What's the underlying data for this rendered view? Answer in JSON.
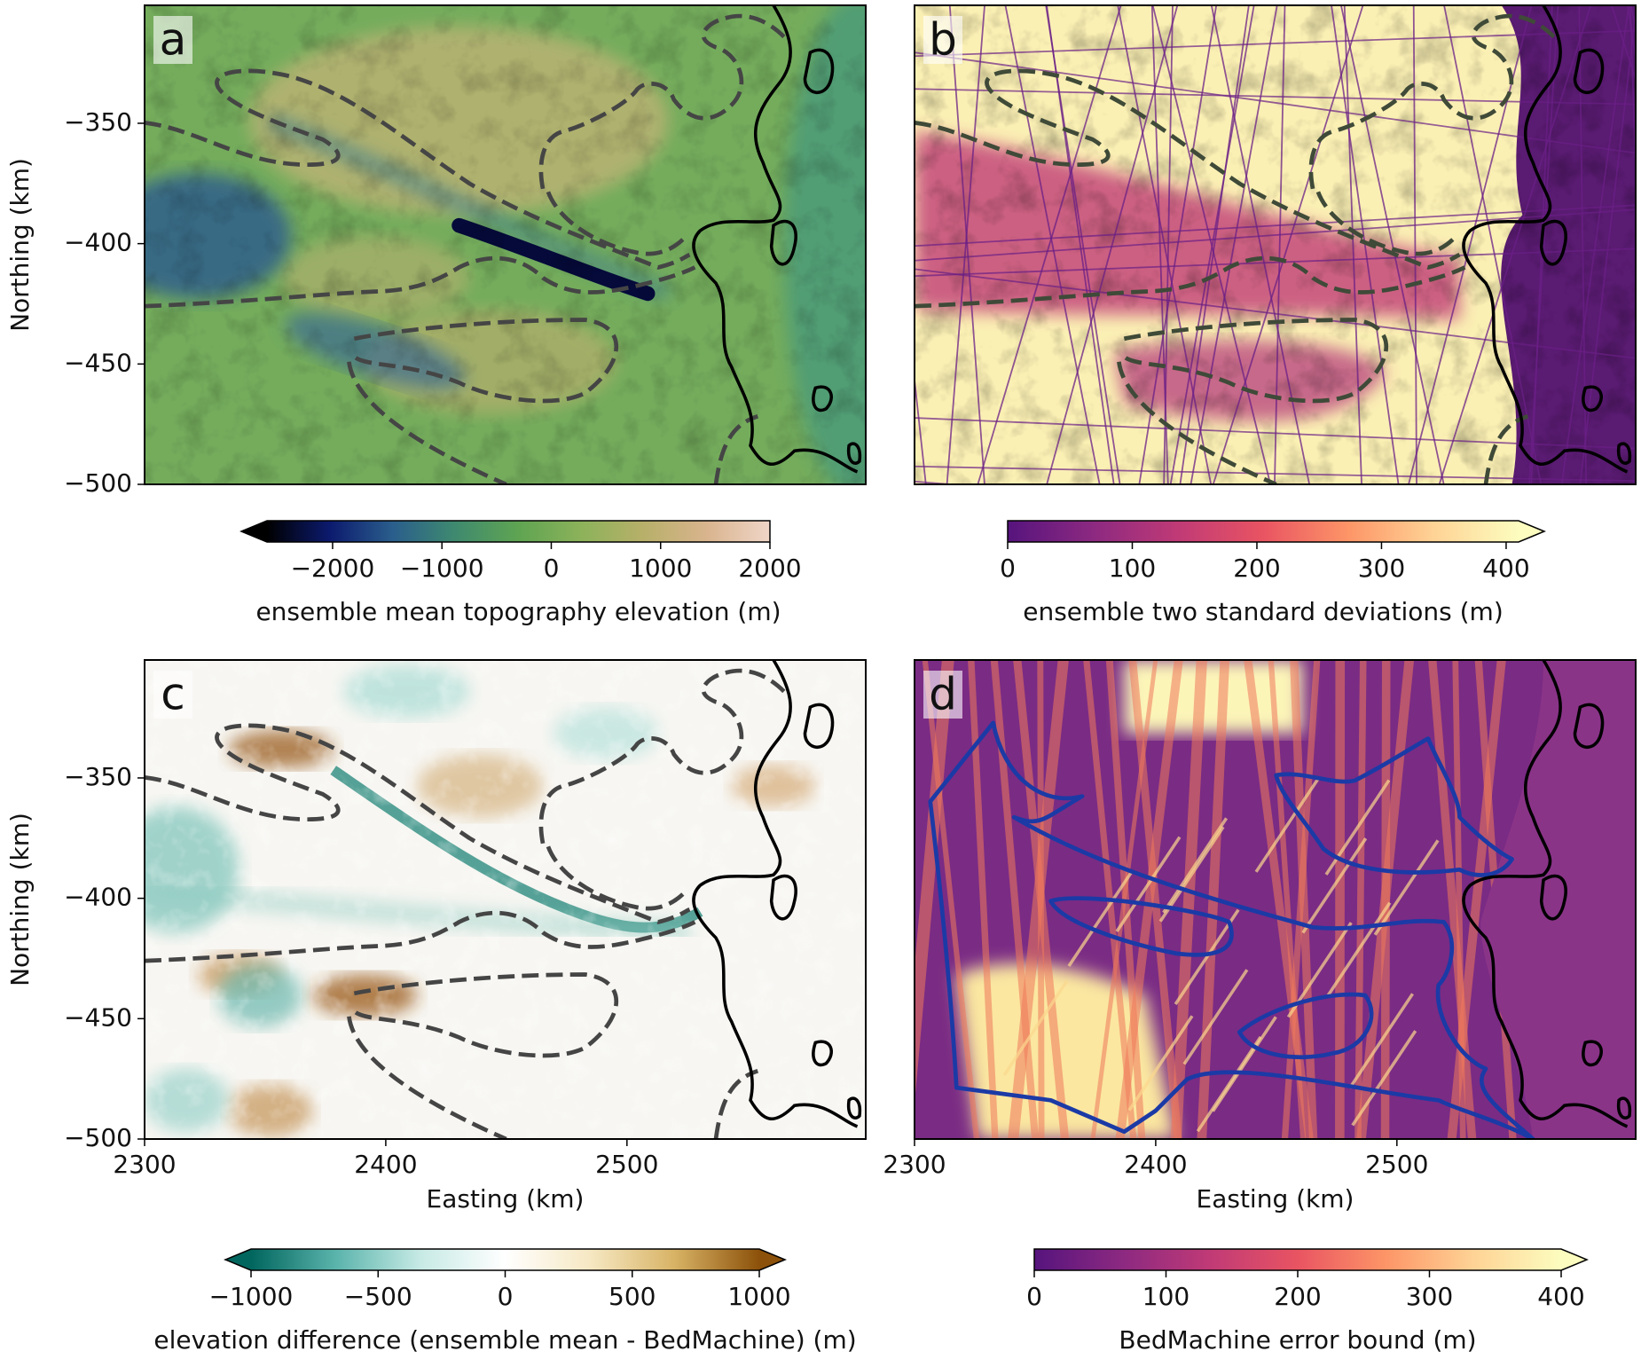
{
  "chart_data": [
    {
      "type": "heatmap",
      "panel_label": "a",
      "ylim": [
        -500,
        -301
      ],
      "yticks": [
        {
          "value": -350,
          "label": "−350"
        },
        {
          "value": -400,
          "label": "−400"
        },
        {
          "value": -450,
          "label": "−450"
        },
        {
          "value": -500,
          "label": "−500"
        }
      ],
      "ylabel": "Northing (km)",
      "outline_color": "#454545",
      "outline_style": "dashed",
      "colorbar": {
        "label": "ensemble mean topography elevation (m)",
        "lim": [
          -2600,
          2000
        ],
        "ticks": [
          {
            "value": -2000,
            "label": "−2000"
          },
          {
            "value": -1000,
            "label": "−1000"
          },
          0,
          1000,
          2000
        ],
        "extend": "min",
        "colors": [
          "#000000",
          "#0c1a6e",
          "#2a5e8c",
          "#3f8a6f",
          "#5fa452",
          "#8cb25a",
          "#b8b06a",
          "#d9b48e",
          "#f0d6c8"
        ]
      }
    },
    {
      "type": "heatmap",
      "panel_label": "b",
      "outline_color": "#3f4a38",
      "outline_style": "dashed",
      "colorbar": {
        "label": "ensemble two standard deviations (m)",
        "lim": [
          0,
          410
        ],
        "ticks": [
          0,
          100,
          200,
          300,
          400
        ],
        "extend": "max",
        "colors": [
          "#56147d",
          "#8c2981",
          "#c03a76",
          "#e95462",
          "#fd9567",
          "#fed395",
          "#fcfdbf"
        ]
      }
    },
    {
      "type": "heatmap",
      "panel_label": "c",
      "xlim": [
        2300,
        2599
      ],
      "ylim": [
        -500,
        -301
      ],
      "xticks": [
        2300,
        2400,
        2500
      ],
      "yticks": [
        {
          "value": -350,
          "label": "−350"
        },
        {
          "value": -400,
          "label": "−400"
        },
        {
          "value": -450,
          "label": "−450"
        },
        {
          "value": -500,
          "label": "−500"
        }
      ],
      "xlabel": "Easting (km)",
      "ylabel": "Northing (km)",
      "outline_color": "#454545",
      "outline_style": "dashed",
      "colorbar": {
        "label": "elevation difference (ensemble mean - BedMachine) (m)",
        "lim": [
          -1000,
          1000
        ],
        "ticks": [
          {
            "value": -1000,
            "label": "−1000"
          },
          {
            "value": -500,
            "label": "−500"
          },
          0,
          500,
          1000
        ],
        "extend": "both",
        "colors": [
          "#01665e",
          "#5ab4ac",
          "#c7eae5",
          "#ffffff",
          "#f6e8c3",
          "#d8b365",
          "#8c510a"
        ]
      }
    },
    {
      "type": "heatmap",
      "panel_label": "d",
      "xlim": [
        2300,
        2599
      ],
      "xticks": [
        2300,
        2400,
        2500
      ],
      "xlabel": "Easting (km)",
      "outline_color": "#1b3aa6",
      "outline_style": "solid",
      "colorbar": {
        "label": "BedMachine error bound (m)",
        "lim": [
          0,
          400
        ],
        "ticks": [
          0,
          100,
          200,
          300,
          400
        ],
        "extend": "max",
        "colors": [
          "#56147d",
          "#8c2981",
          "#c03a76",
          "#e95462",
          "#fd9567",
          "#fed395",
          "#fcfdbf"
        ]
      }
    }
  ]
}
